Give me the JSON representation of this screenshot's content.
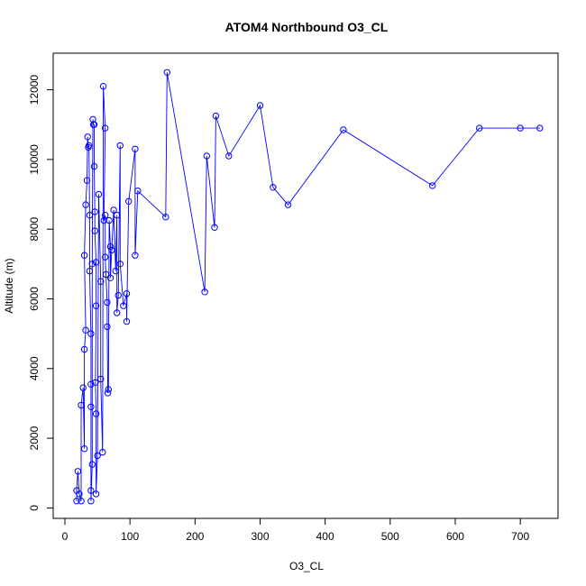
{
  "chart_data": {
    "type": "line",
    "title": "ATOM4 Northbound O3_CL",
    "xlabel": "O3_CL",
    "ylabel": "Altitude (m)",
    "xlim": [
      0,
      750
    ],
    "ylim": [
      0,
      12800
    ],
    "x_ticks": [
      0,
      100,
      200,
      300,
      400,
      500,
      600,
      700
    ],
    "y_ticks": [
      0,
      2000,
      4000,
      6000,
      8000,
      10000,
      12000
    ],
    "grid": false,
    "legend": "none",
    "marker": "open-circle",
    "series": [
      {
        "color": "#0000ff",
        "points": [
          [
            18,
            200
          ],
          [
            18,
            500
          ],
          [
            20,
            1050
          ],
          [
            22,
            400
          ],
          [
            25,
            200
          ],
          [
            25,
            2950
          ],
          [
            28,
            3450
          ],
          [
            30,
            1700
          ],
          [
            30,
            4550
          ],
          [
            32,
            5100
          ],
          [
            30,
            7250
          ],
          [
            32,
            8700
          ],
          [
            34,
            9400
          ],
          [
            35,
            10650
          ],
          [
            36,
            10350
          ],
          [
            37,
            10400
          ],
          [
            38,
            8400
          ],
          [
            38,
            6800
          ],
          [
            40,
            5000
          ],
          [
            40,
            3550
          ],
          [
            40,
            2900
          ],
          [
            40,
            500
          ],
          [
            40,
            200
          ],
          [
            42,
            1250
          ],
          [
            42,
            7000
          ],
          [
            43,
            11150
          ],
          [
            44,
            11000
          ],
          [
            45,
            11000
          ],
          [
            45,
            9800
          ],
          [
            46,
            8500
          ],
          [
            46,
            7950
          ],
          [
            48,
            7050
          ],
          [
            48,
            5800
          ],
          [
            47,
            3600
          ],
          [
            48,
            2700
          ],
          [
            48,
            400
          ],
          [
            50,
            1500
          ],
          [
            52,
            9000
          ],
          [
            55,
            6500
          ],
          [
            55,
            3700
          ],
          [
            58,
            1600
          ],
          [
            59,
            12100
          ],
          [
            62,
            10900
          ],
          [
            60,
            8250
          ],
          [
            62,
            8400
          ],
          [
            62,
            7200
          ],
          [
            63,
            6700
          ],
          [
            65,
            5900
          ],
          [
            65,
            5200
          ],
          [
            66,
            3300
          ],
          [
            67,
            3400
          ],
          [
            68,
            8250
          ],
          [
            70,
            7500
          ],
          [
            70,
            6600
          ],
          [
            72,
            7400
          ],
          [
            75,
            8550
          ],
          [
            78,
            6800
          ],
          [
            80,
            8400
          ],
          [
            80,
            5600
          ],
          [
            82,
            6100
          ],
          [
            85,
            10400
          ],
          [
            85,
            7000
          ],
          [
            90,
            5800
          ],
          [
            95,
            6150
          ],
          [
            95,
            5350
          ],
          [
            98,
            8800
          ],
          [
            108,
            10300
          ],
          [
            108,
            7250
          ],
          [
            112,
            9100
          ],
          [
            155,
            8350
          ],
          [
            157,
            12500
          ],
          [
            215,
            6200
          ],
          [
            218,
            10100
          ],
          [
            230,
            8050
          ],
          [
            232,
            11250
          ],
          [
            252,
            10100
          ],
          [
            300,
            11550
          ],
          [
            320,
            9200
          ],
          [
            343,
            8700
          ],
          [
            428,
            10850
          ],
          [
            565,
            9250
          ],
          [
            637,
            10900
          ],
          [
            700,
            10900
          ],
          [
            730,
            10900
          ]
        ]
      }
    ]
  }
}
